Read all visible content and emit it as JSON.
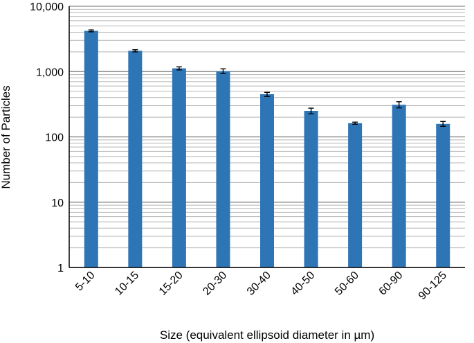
{
  "chart_data": {
    "type": "bar",
    "title": "",
    "xlabel": "Size (equivalent ellipsoid diameter in µm)",
    "ylabel": "Number of Particles",
    "yscale": "log",
    "ylim": [
      1,
      10000
    ],
    "y_ticks": [
      1,
      10,
      100,
      1000,
      10000
    ],
    "y_tick_labels": [
      "1",
      "10",
      "100",
      "1,000",
      "10,000"
    ],
    "grid": true,
    "categories": [
      "5-10",
      "10-15",
      "15-20",
      "20-30",
      "30-40",
      "40-50",
      "50-60",
      "60-90",
      "90-125"
    ],
    "values": [
      4200,
      2080,
      1120,
      1010,
      450,
      250,
      162,
      310,
      158
    ],
    "error_low": [
      4060,
      2000,
      1060,
      930,
      415,
      225,
      156,
      278,
      145
    ],
    "error_high": [
      4340,
      2160,
      1180,
      1100,
      480,
      275,
      168,
      345,
      172
    ],
    "colors": {
      "bar": "#2e75b6",
      "grid": "#b4b4b4",
      "axis": "#000000",
      "error_bar": "#000000"
    }
  }
}
